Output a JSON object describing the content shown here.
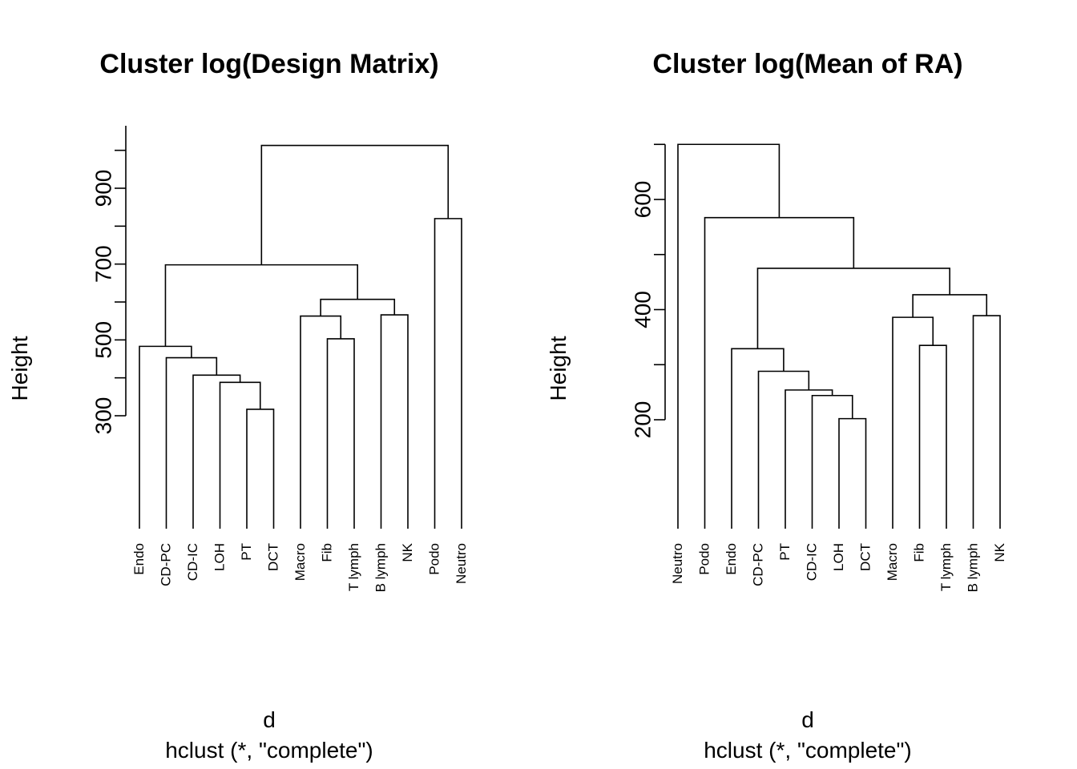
{
  "chart_data": [
    {
      "type": "dendrogram",
      "title": "Cluster log(Design Matrix)",
      "xlabel": "d",
      "sub": "hclust (*, \"complete\")",
      "ylabel": "Height",
      "yticks": [
        300,
        500,
        700,
        900
      ],
      "ylim": [
        300,
        1020
      ],
      "leaves": [
        "Endo",
        "CD-PC",
        "CD-IC",
        "LOH",
        "PT",
        "DCT",
        "Macro",
        "Fib",
        "T lymph",
        "B lymph",
        "NK",
        "Podo",
        "Neutro"
      ],
      "merges": [
        {
          "left": "PT",
          "right": "DCT",
          "height": 317
        },
        {
          "left": "LOH",
          "right": [
            "PT",
            "DCT"
          ],
          "height": 388
        },
        {
          "left": "CD-IC",
          "right": [
            "LOH",
            "PT",
            "DCT"
          ],
          "height": 407
        },
        {
          "left": "CD-PC",
          "right": [
            "CD-IC",
            "LOH",
            "PT",
            "DCT"
          ],
          "height": 453
        },
        {
          "left": "Endo",
          "right": [
            "CD-PC",
            "CD-IC",
            "LOH",
            "PT",
            "DCT"
          ],
          "height": 483
        },
        {
          "left": "Fib",
          "right": "T lymph",
          "height": 503
        },
        {
          "left": "Macro",
          "right": [
            "Fib",
            "T lymph"
          ],
          "height": 563
        },
        {
          "left": "B lymph",
          "right": "NK",
          "height": 566
        },
        {
          "left": [
            "Macro",
            "Fib",
            "T lymph"
          ],
          "right": [
            "B lymph",
            "NK"
          ],
          "height": 607
        },
        {
          "left": [
            "Endo",
            "CD-PC",
            "CD-IC",
            "LOH",
            "PT",
            "DCT"
          ],
          "right": [
            "Macro",
            "Fib",
            "T lymph",
            "B lymph",
            "NK"
          ],
          "height": 698
        },
        {
          "left": "Podo",
          "right": "Neutro",
          "height": 820
        },
        {
          "left": [
            "Endo",
            "CD-PC",
            "CD-IC",
            "LOH",
            "PT",
            "DCT",
            "Macro",
            "Fib",
            "T lymph",
            "B lymph",
            "NK"
          ],
          "right": [
            "Podo",
            "Neutro"
          ],
          "height": 1013
        }
      ]
    },
    {
      "type": "dendrogram",
      "title": "Cluster log(Mean of RA)",
      "xlabel": "d",
      "sub": "hclust (*, \"complete\")",
      "ylabel": "Height",
      "yticks": [
        200,
        400,
        600
      ],
      "ylim": [
        200,
        700
      ],
      "leaves": [
        "Neutro",
        "Podo",
        "Endo",
        "CD-PC",
        "PT",
        "CD-IC",
        "LOH",
        "DCT",
        "Macro",
        "Fib",
        "T lymph",
        "B lymph",
        "NK"
      ],
      "merges": [
        {
          "left": "LOH",
          "right": "DCT",
          "height": 202
        },
        {
          "left": "CD-IC",
          "right": [
            "LOH",
            "DCT"
          ],
          "height": 244
        },
        {
          "left": "PT",
          "right": [
            "CD-IC",
            "LOH",
            "DCT"
          ],
          "height": 254
        },
        {
          "left": "CD-PC",
          "right": [
            "PT",
            "CD-IC",
            "LOH",
            "DCT"
          ],
          "height": 288
        },
        {
          "left": "Endo",
          "right": [
            "CD-PC",
            "PT",
            "CD-IC",
            "LOH",
            "DCT"
          ],
          "height": 329
        },
        {
          "left": "Fib",
          "right": "T lymph",
          "height": 335
        },
        {
          "left": "Macro",
          "right": [
            "Fib",
            "T lymph"
          ],
          "height": 386
        },
        {
          "left": "B lymph",
          "right": "NK",
          "height": 389
        },
        {
          "left": [
            "Macro",
            "Fib",
            "T lymph"
          ],
          "right": [
            "B lymph",
            "NK"
          ],
          "height": 427
        },
        {
          "left": [
            "Endo",
            "CD-PC",
            "PT",
            "CD-IC",
            "LOH",
            "DCT"
          ],
          "right": [
            "Macro",
            "Fib",
            "T lymph",
            "B lymph",
            "NK"
          ],
          "height": 475
        },
        {
          "left": "Podo",
          "right": [
            "Endo",
            "CD-PC",
            "PT",
            "CD-IC",
            "LOH",
            "DCT",
            "Macro",
            "Fib",
            "T lymph",
            "B lymph",
            "NK"
          ],
          "height": 567
        },
        {
          "left": "Neutro",
          "right": [
            "Podo",
            "Endo",
            "CD-PC",
            "PT",
            "CD-IC",
            "LOH",
            "DCT",
            "Macro",
            "Fib",
            "T lymph",
            "B lymph",
            "NK"
          ],
          "height": 700
        }
      ]
    }
  ]
}
